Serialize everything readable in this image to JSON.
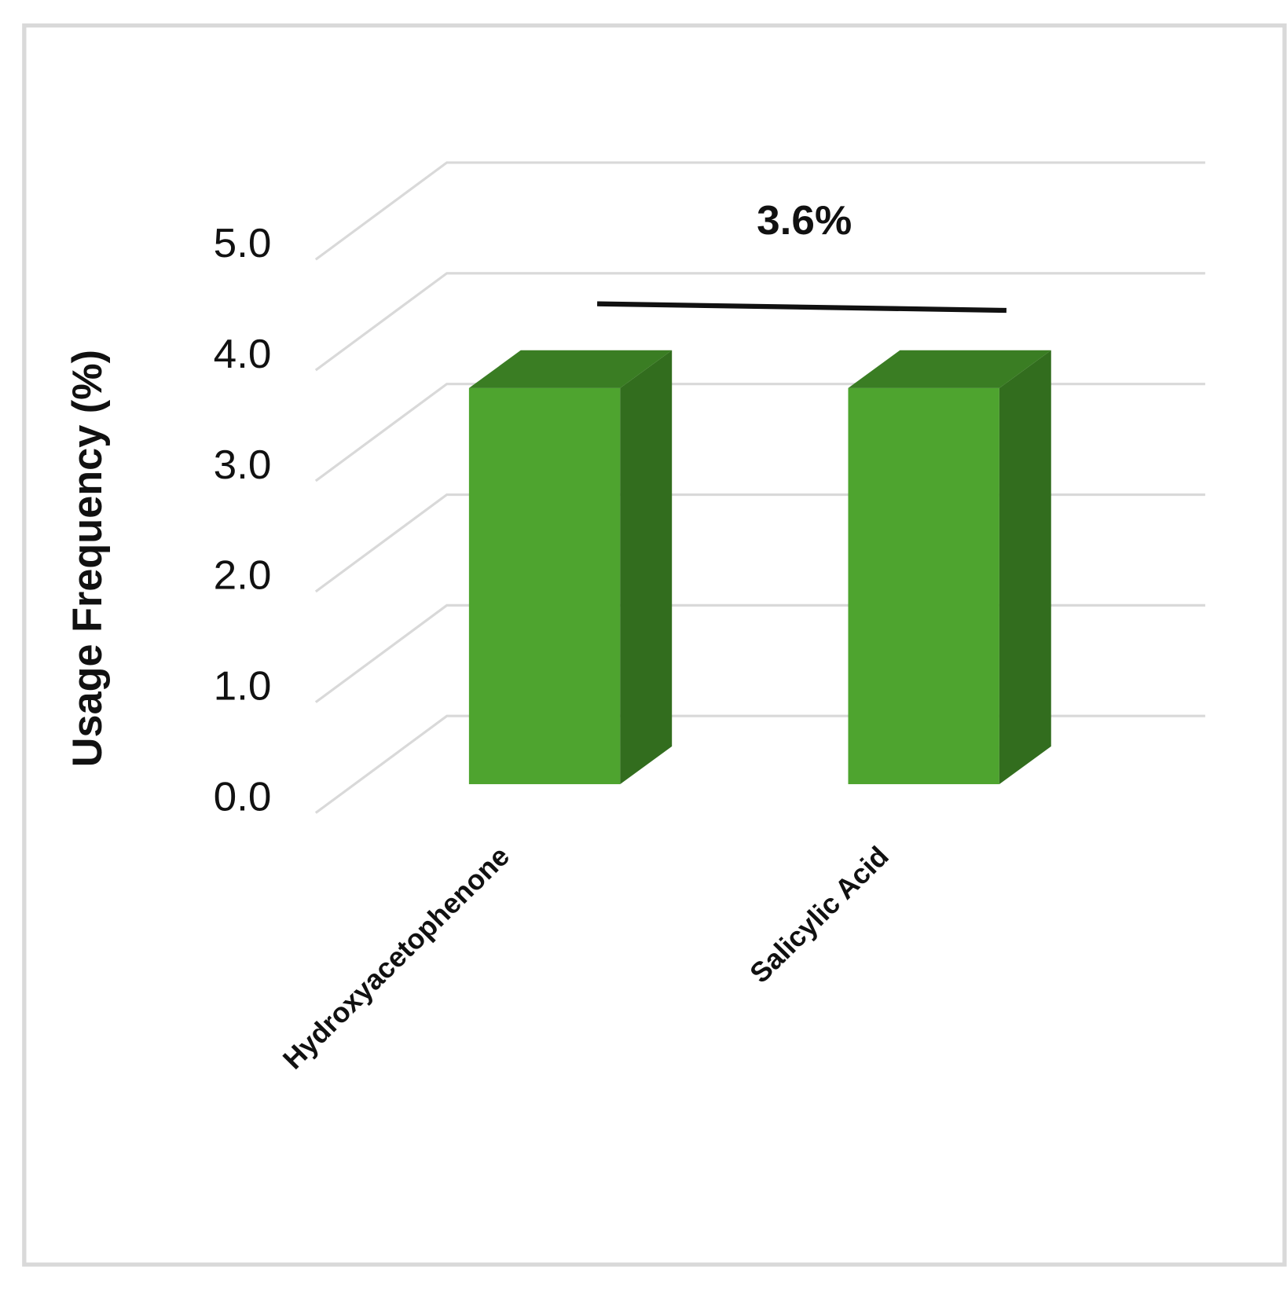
{
  "chart_data": {
    "type": "bar3d",
    "y_label": "Usage Frequency (%)",
    "categories": [
      "Hydroxyacetophenone",
      "Salicylic Acid"
    ],
    "values": [
      3.6,
      3.6
    ],
    "color": "#4ea42f",
    "annotation": "3.6%",
    "ylim": [
      0,
      5
    ],
    "yticks": [
      {
        "value": 0,
        "label": "0.0"
      },
      {
        "value": 1,
        "label": "1.0"
      },
      {
        "value": 2,
        "label": "2.0"
      },
      {
        "value": 3,
        "label": "3.0"
      },
      {
        "value": 4,
        "label": "4.0"
      },
      {
        "value": 5,
        "label": "5.0"
      }
    ],
    "grid": true
  }
}
